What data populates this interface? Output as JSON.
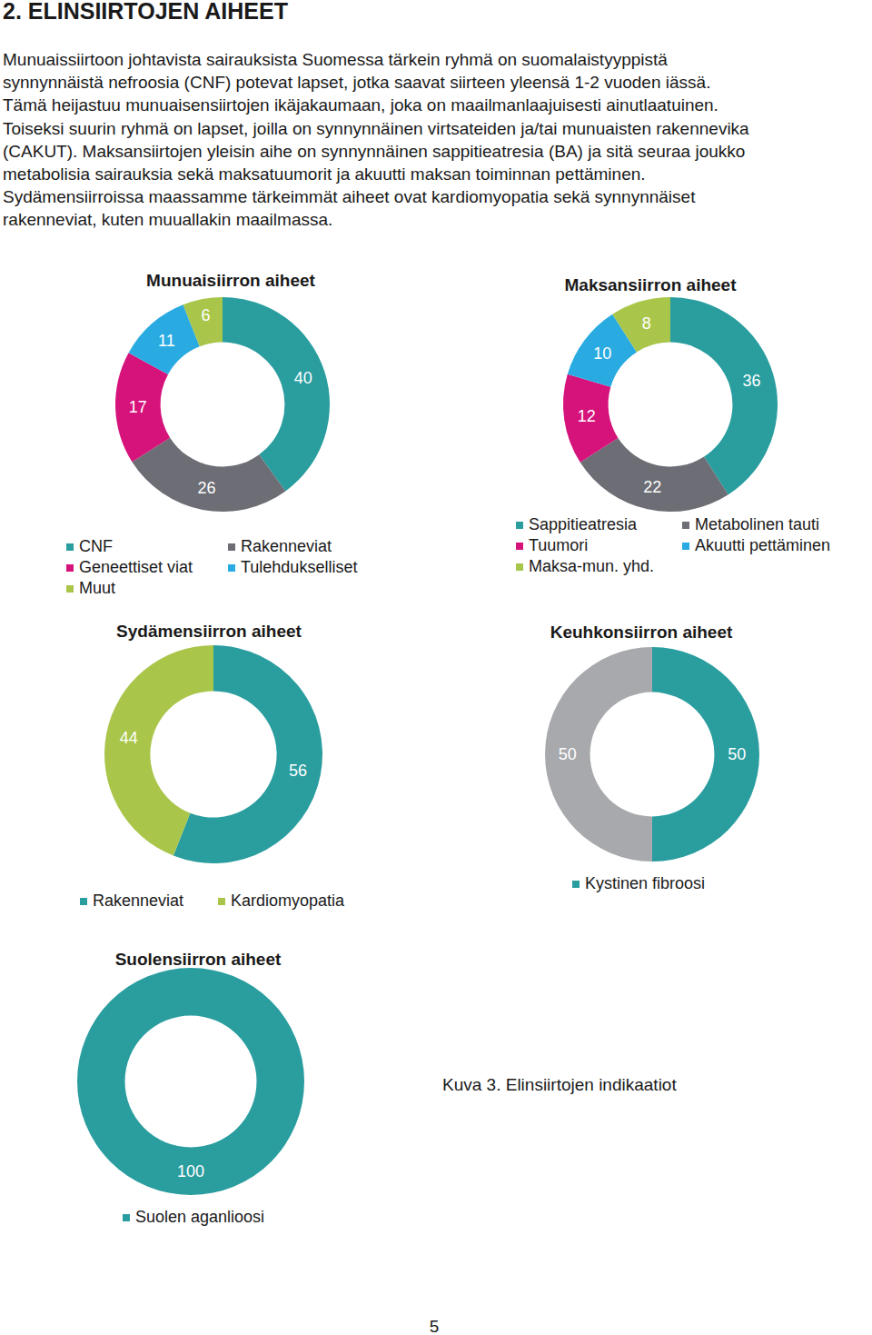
{
  "header": "2. ELINSIIRTOJEN AIHEET",
  "paragraph_lines": [
    "Munuaissiirtoon johtavista sairauksista Suomessa tärkein ryhmä on suomalaistyyppistä",
    "synnynnäistä nefroosia (CNF) potevat lapset, jotka saavat siirteen yleensä 1-2 vuoden iässä.",
    "Tämä heijastuu munuaisensiirtojen ikäjakaumaan, joka on maailmanlaajuisesti ainutlaatuinen.",
    "Toiseksi suurin ryhmä on lapset, joilla on synnynnäinen virtsateiden ja/tai munuaisten rakennevika",
    "(CAKUT). Maksansiirtojen yleisin aihe on synnynnäinen sappitieatresia (BA) ja sitä seuraa joukko",
    "metabolisia sairauksia sekä maksatuumorit ja akuutti maksan toiminnan pettäminen.",
    "Sydämensiirroissa maassamme tärkeimmät aiheet ovat kardiomyopatia sekä synnynnäiset",
    "rakenneviat, kuten muuallakin maailmassa."
  ],
  "chart_data": [
    {
      "type": "donut",
      "title": "Munuaisiirron aiheet",
      "categories": [
        "CNF",
        "Rakenneviat",
        "Geneettiset viat",
        "Tulehdukselliset",
        "Muut"
      ],
      "values": [
        40,
        26,
        17,
        11,
        6
      ],
      "colors": [
        "#2a9d9f",
        "#6d6e75",
        "#d6127b",
        "#29abe2",
        "#a9c64a"
      ],
      "data_labels": true
    },
    {
      "type": "donut",
      "title": "Maksansiirron aiheet",
      "categories": [
        "Sappitieatresia",
        "Metabolinen tauti",
        "Tuumori",
        "Akuutti pettäminen",
        "Maksa-mun. yhd."
      ],
      "values": [
        36,
        22,
        12,
        10,
        8
      ],
      "colors": [
        "#2a9d9f",
        "#6d6e75",
        "#d6127b",
        "#29abe2",
        "#a9c64a"
      ],
      "data_labels": true
    },
    {
      "type": "donut",
      "title": "Sydämensiirron aiheet",
      "categories": [
        "Rakenneviat",
        "Kardiomyopatia"
      ],
      "values": [
        56,
        44
      ],
      "colors": [
        "#2a9d9f",
        "#a9c64a"
      ],
      "data_labels": true
    },
    {
      "type": "donut",
      "title": "Keuhkonsiirron aiheet",
      "categories": [
        "Kystinen fibroosi",
        null
      ],
      "values": [
        50,
        50
      ],
      "colors": [
        "#2a9d9f",
        "#a7a9ac"
      ],
      "data_labels": true
    },
    {
      "type": "donut",
      "title": "Suolensiirron aiheet",
      "categories": [
        "Suolen aganlioosi"
      ],
      "values": [
        100
      ],
      "colors": [
        "#2a9d9f"
      ],
      "data_labels": true
    }
  ],
  "caption": "Kuva 3. Elinsiirtojen indikaatiot",
  "page_number": 5
}
